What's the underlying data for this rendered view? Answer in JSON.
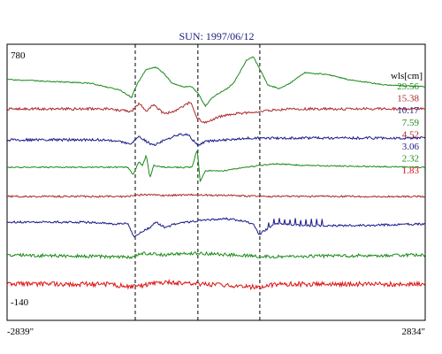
{
  "chart_data": {
    "type": "line",
    "title": "SUN: 1997/06/12",
    "y_top_label": "780",
    "y_bottom_label": "-140",
    "x_left_label": "-2839\"",
    "x_right_label": "2834\"",
    "x_range": [
      -2839,
      2834
    ],
    "legend_title": "wls[cm]",
    "legend_placement": "right",
    "markers_x": [
      -1100,
      -250,
      590
    ],
    "series": [
      {
        "name": "29.56",
        "color": "#1a8a1a",
        "style": "smooth",
        "noise": 0.6,
        "amp": 1.0,
        "profile": [
          [
            -2839,
            0
          ],
          [
            -1700,
            -4
          ],
          [
            -1300,
            -12
          ],
          [
            -1150,
            -20
          ],
          [
            -1080,
            -6
          ],
          [
            -950,
            12
          ],
          [
            -820,
            14
          ],
          [
            -720,
            8
          ],
          [
            -600,
            -4
          ],
          [
            -450,
            -8
          ],
          [
            -330,
            -8
          ],
          [
            -250,
            -15
          ],
          [
            -150,
            -30
          ],
          [
            -50,
            -20
          ],
          [
            60,
            -14
          ],
          [
            150,
            -10
          ],
          [
            250,
            -2
          ],
          [
            330,
            10
          ],
          [
            410,
            22
          ],
          [
            500,
            26
          ],
          [
            590,
            12
          ],
          [
            700,
            -6
          ],
          [
            850,
            -10
          ],
          [
            1000,
            -4
          ],
          [
            1200,
            8
          ],
          [
            1500,
            6
          ],
          [
            1800,
            0
          ],
          [
            2300,
            -6
          ],
          [
            2834,
            -8
          ]
        ]
      },
      {
        "name": "15.38",
        "color": "#aa2a2a",
        "style": "noisy",
        "noise": 1.4,
        "amp": 1.0,
        "profile": [
          [
            -2839,
            0
          ],
          [
            -1500,
            0
          ],
          [
            -1150,
            -3
          ],
          [
            -1050,
            6
          ],
          [
            -950,
            -2
          ],
          [
            -850,
            4
          ],
          [
            -700,
            -6
          ],
          [
            -500,
            0
          ],
          [
            -350,
            8
          ],
          [
            -270,
            -10
          ],
          [
            -150,
            -16
          ],
          [
            0,
            -10
          ],
          [
            200,
            -6
          ],
          [
            500,
            -4
          ],
          [
            700,
            -2
          ],
          [
            1000,
            0
          ],
          [
            2834,
            0
          ]
        ]
      },
      {
        "name": "10.17",
        "color": "#1a1a8a",
        "style": "noisy",
        "noise": 1.4,
        "amp": 1.0,
        "profile": [
          [
            -2839,
            -2
          ],
          [
            -1500,
            -2
          ],
          [
            -1150,
            -6
          ],
          [
            -1050,
            2
          ],
          [
            -950,
            -4
          ],
          [
            -850,
            -8
          ],
          [
            -700,
            -2
          ],
          [
            -500,
            4
          ],
          [
            -380,
            4
          ],
          [
            -300,
            -4
          ],
          [
            -250,
            -8
          ],
          [
            -150,
            -4
          ],
          [
            100,
            -2
          ],
          [
            400,
            0
          ],
          [
            700,
            0
          ],
          [
            2834,
            0
          ]
        ]
      },
      {
        "name": "7.59",
        "color": "#1a8a1a",
        "style": "smooth",
        "noise": 0.7,
        "amp": 1.0,
        "profile": [
          [
            -2839,
            0
          ],
          [
            -1200,
            0
          ],
          [
            -1130,
            -8
          ],
          [
            -1050,
            6
          ],
          [
            -1000,
            2
          ],
          [
            -950,
            14
          ],
          [
            -900,
            -12
          ],
          [
            -850,
            2
          ],
          [
            -700,
            0
          ],
          [
            -500,
            0
          ],
          [
            -330,
            0
          ],
          [
            -260,
            20
          ],
          [
            -220,
            -16
          ],
          [
            -150,
            -4
          ],
          [
            100,
            -4
          ],
          [
            400,
            0
          ],
          [
            800,
            4
          ],
          [
            1200,
            2
          ],
          [
            2834,
            0
          ]
        ]
      },
      {
        "name": "4.52",
        "color": "#aa2a2a",
        "style": "noisy",
        "noise": 1.0,
        "amp": 1.0,
        "profile": [
          [
            -2839,
            0
          ],
          [
            -1200,
            0
          ],
          [
            -1000,
            2
          ],
          [
            -700,
            1
          ],
          [
            -300,
            2
          ],
          [
            200,
            1
          ],
          [
            700,
            0
          ],
          [
            2834,
            0
          ]
        ]
      },
      {
        "name": "3.06",
        "color": "#1a1a8a",
        "style": "spiky",
        "noise": 1.2,
        "amp": 1.0,
        "profile": [
          [
            -2839,
            4
          ],
          [
            -1800,
            4
          ],
          [
            -1400,
            2
          ],
          [
            -1200,
            2
          ],
          [
            -1120,
            -12
          ],
          [
            -1000,
            -6
          ],
          [
            -900,
            -2
          ],
          [
            -820,
            4
          ],
          [
            -700,
            -2
          ],
          [
            -550,
            2
          ],
          [
            -400,
            4
          ],
          [
            -200,
            6
          ],
          [
            100,
            8
          ],
          [
            350,
            6
          ],
          [
            500,
            2
          ],
          [
            580,
            -10
          ],
          [
            650,
            -6
          ],
          [
            800,
            2
          ],
          [
            1200,
            0
          ],
          [
            1800,
            0
          ],
          [
            2834,
            2
          ]
        ]
      },
      {
        "name": "2.32",
        "color": "#1a8a1a",
        "style": "noisy",
        "noise": 1.8,
        "amp": 1.0,
        "profile": [
          [
            -2839,
            0
          ],
          [
            -1500,
            -2
          ],
          [
            -1150,
            -3
          ],
          [
            -1000,
            2
          ],
          [
            -700,
            0
          ],
          [
            -300,
            2
          ],
          [
            200,
            0
          ],
          [
            700,
            -2
          ],
          [
            2834,
            0
          ]
        ]
      },
      {
        "name": "1.83",
        "color": "#dd1111",
        "style": "noisy",
        "noise": 2.6,
        "amp": 1.0,
        "profile": [
          [
            -2839,
            0
          ],
          [
            -1500,
            0
          ],
          [
            -1150,
            -3
          ],
          [
            -700,
            2
          ],
          [
            -300,
            0
          ],
          [
            300,
            -2
          ],
          [
            590,
            -4
          ],
          [
            800,
            0
          ],
          [
            2834,
            0
          ]
        ]
      }
    ]
  }
}
